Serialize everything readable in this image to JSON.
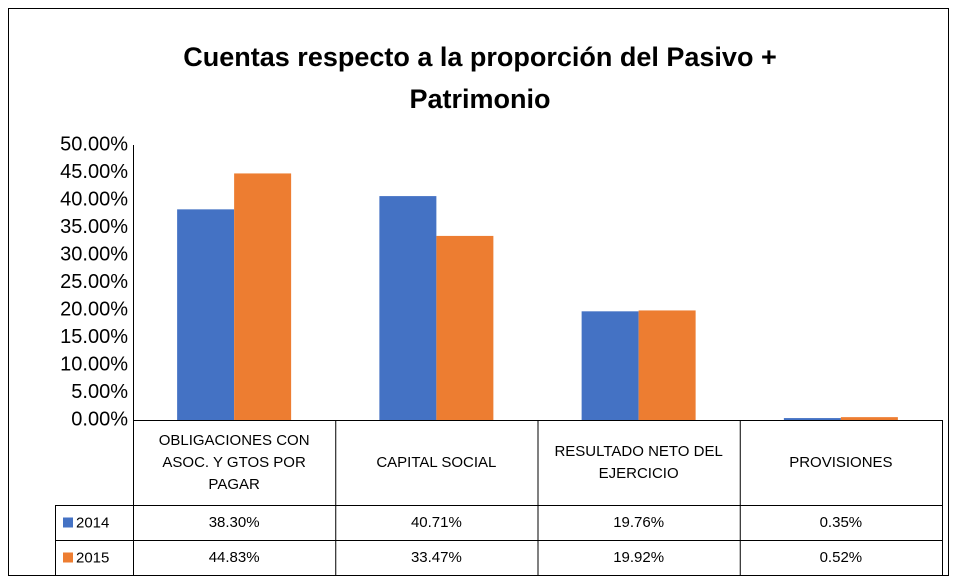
{
  "chart_data": {
    "type": "bar",
    "title": "Cuentas respecto a la proporción del Pasivo + Patrimonio",
    "categories": [
      "OBLIGACIONES CON ASOC. Y GTOS POR PAGAR",
      "CAPITAL SOCIAL",
      "RESULTADO NETO DEL EJERCICIO",
      "PROVISIONES"
    ],
    "series": [
      {
        "name": "2014",
        "color": "#4472c4",
        "values": [
          38.3,
          40.71,
          19.76,
          0.35
        ],
        "value_labels": [
          "38.30%",
          "40.71%",
          "19.76%",
          "0.35%"
        ]
      },
      {
        "name": "2015",
        "color": "#ed7d31",
        "values": [
          44.83,
          33.47,
          19.92,
          0.52
        ],
        "value_labels": [
          "44.83%",
          "33.47%",
          "19.92%",
          "0.52%"
        ]
      }
    ],
    "ylim": [
      0,
      50
    ],
    "yticks": [
      {
        "value": 0,
        "label": "0.00%"
      },
      {
        "value": 5,
        "label": "5.00%"
      },
      {
        "value": 10,
        "label": "10.00%"
      },
      {
        "value": 15,
        "label": "15.00%"
      },
      {
        "value": 20,
        "label": "20.00%"
      },
      {
        "value": 25,
        "label": "25.00%"
      },
      {
        "value": 30,
        "label": "30.00%"
      },
      {
        "value": 35,
        "label": "35.00%"
      },
      {
        "value": 40,
        "label": "40.00%"
      },
      {
        "value": 45,
        "label": "45.00%"
      },
      {
        "value": 50,
        "label": "50.00%"
      }
    ],
    "grid": false
  }
}
